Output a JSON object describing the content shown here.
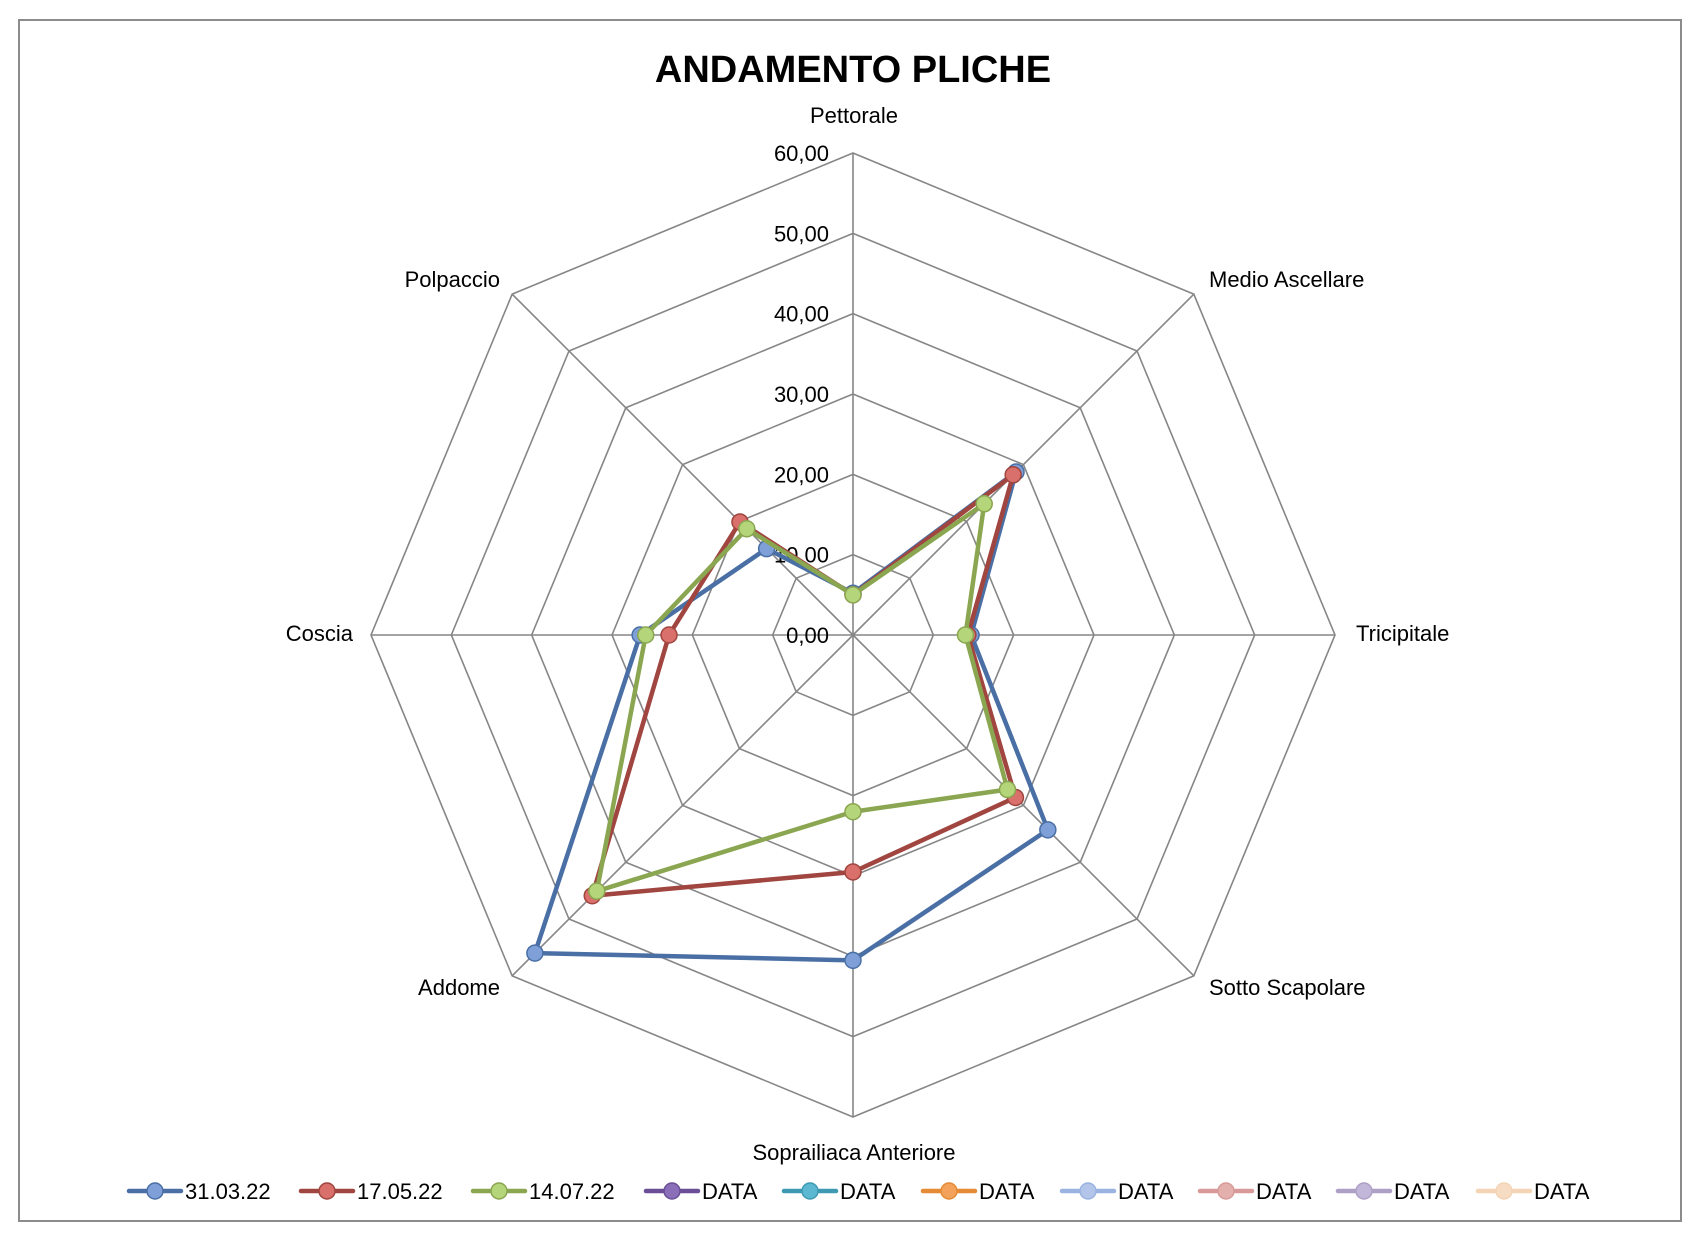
{
  "chart_data": {
    "type": "radar",
    "title": "ANDAMENTO PLICHE",
    "categories": [
      "Pettorale",
      "Medio Ascellare",
      "Tricipitale",
      "Sotto Scapolare",
      "Soprailiaca Anteriore",
      "Addome",
      "Coscia",
      "Polpaccio"
    ],
    "rlim": [
      0,
      60
    ],
    "ticks": [
      "0,00",
      "10,00",
      "20,00",
      "30,00",
      "40,00",
      "50,00",
      "60,00"
    ],
    "tick_values": [
      0,
      10,
      20,
      30,
      40,
      50,
      60
    ],
    "grid": true,
    "legend_position": "bottom",
    "series": [
      {
        "name": "31.03.22",
        "color": "#4a6fa5",
        "marker": "#7e9fd8",
        "values": [
          5.2,
          28.7,
          14.7,
          34.3,
          40.5,
          56.0,
          26.5,
          15.2
        ]
      },
      {
        "name": "17.05.22",
        "color": "#a0453f",
        "marker": "#d9706b",
        "values": [
          5.0,
          28.2,
          14.3,
          28.6,
          29.5,
          45.9,
          22.9,
          19.9
        ]
      },
      {
        "name": "14.07.22",
        "color": "#8aa650",
        "marker": "#b5d57a",
        "values": [
          5.0,
          23.1,
          14.0,
          27.2,
          22.0,
          45.1,
          25.8,
          18.7
        ]
      }
    ],
    "legend_extra": [
      {
        "name": "DATA",
        "color": "#6a4f96",
        "marker": "#8a6fb8"
      },
      {
        "name": "DATA",
        "color": "#3e99b3",
        "marker": "#5cb7d0"
      },
      {
        "name": "DATA",
        "color": "#e58a35",
        "marker": "#f2a25a"
      },
      {
        "name": "DATA",
        "color": "#9bb3e0",
        "marker": "#b3c6ea"
      },
      {
        "name": "DATA",
        "color": "#d79a98",
        "marker": "#e4b0ae"
      },
      {
        "name": "DATA",
        "color": "#ada0c7",
        "marker": "#c2b7d8"
      },
      {
        "name": "DATA",
        "color": "#f5d3b5",
        "marker": "#f7dcc4"
      }
    ]
  }
}
